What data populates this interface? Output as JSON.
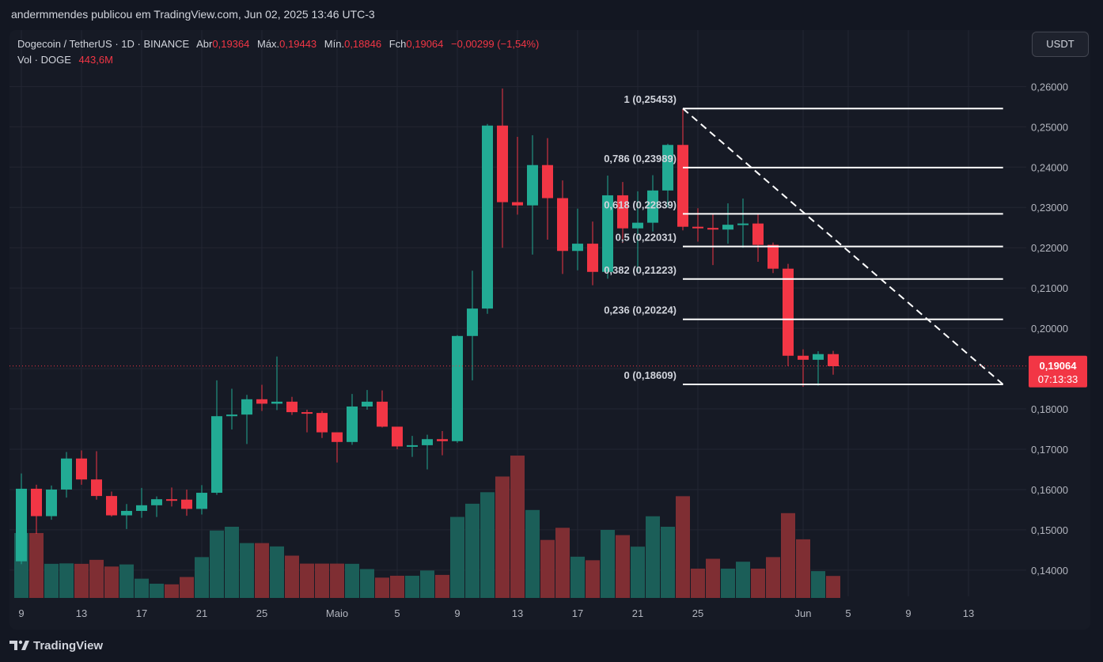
{
  "header": {
    "publisher_line": "andermmendes publicou em TradingView.com, Jun 02, 2025 13:46 UTC-3"
  },
  "legend": {
    "symbol": "Dogecoin / TetherUS · 1D · BINANCE",
    "open_label": "Abr",
    "open_value": "0,19364",
    "high_label": "Máx.",
    "high_value": "0,19443",
    "low_label": "Mín.",
    "low_value": "0,18846",
    "close_label": "Fch",
    "close_value": "0,19064",
    "change": "−0,00299 (−1,54%)",
    "vol_label": "Vol · DOGE",
    "vol_value": "443,6M"
  },
  "unit_button": "USDT",
  "price_badge": {
    "price": "0,19064",
    "countdown": "07:13:33"
  },
  "footer": {
    "brand": "TradingView"
  },
  "colors": {
    "background": "#161a25",
    "up": "#22ab94",
    "down": "#f23645",
    "vol_up": "#1b5e58",
    "vol_down": "#7f2e33",
    "text": "#d1d4dc",
    "axis_text": "#b2b5be",
    "fib_line": "#ffffff",
    "badge": "#f23645"
  },
  "chart_data": {
    "type": "candlestick",
    "title": "Dogecoin / TetherUS · 1D · BINANCE",
    "ylim": [
      0.1335,
      0.274
    ],
    "y_ticks": [
      "0,14000",
      "0,15000",
      "0,16000",
      "0,17000",
      "0,18000",
      "0,19000",
      "0,20000",
      "0,21000",
      "0,22000",
      "0,23000",
      "0,24000",
      "0,25000",
      "0,26000"
    ],
    "y_tick_values": [
      0.14,
      0.15,
      0.16,
      0.17,
      0.18,
      0.19,
      0.2,
      0.21,
      0.22,
      0.23,
      0.24,
      0.25,
      0.26
    ],
    "x_tick_labels": [
      {
        "label": "9",
        "day": 1
      },
      {
        "label": "13",
        "day": 5
      },
      {
        "label": "17",
        "day": 9
      },
      {
        "label": "21",
        "day": 13
      },
      {
        "label": "25",
        "day": 17
      },
      {
        "label": "Maio",
        "day": 22
      },
      {
        "label": "5",
        "day": 26
      },
      {
        "label": "9",
        "day": 30
      },
      {
        "label": "13",
        "day": 34
      },
      {
        "label": "17",
        "day": 38
      },
      {
        "label": "21",
        "day": 42
      },
      {
        "label": "25",
        "day": 46
      },
      {
        "label": "Jun",
        "day": 53
      },
      {
        "label": "5",
        "day": 56
      },
      {
        "label": "9",
        "day": 60
      },
      {
        "label": "13",
        "day": 64
      }
    ],
    "x_range_days": [
      0,
      66.3
    ],
    "candles": [
      {
        "day": 1,
        "o": 0.1422,
        "h": 0.164,
        "l": 0.1415,
        "c": 0.1602,
        "v": 0.31
      },
      {
        "day": 2,
        "o": 0.1602,
        "h": 0.1612,
        "l": 0.149,
        "c": 0.1534,
        "v": 0.31
      },
      {
        "day": 3,
        "o": 0.1534,
        "h": 0.161,
        "l": 0.1525,
        "c": 0.16,
        "v": 0.163
      },
      {
        "day": 4,
        "o": 0.16,
        "h": 0.1693,
        "l": 0.158,
        "c": 0.1677,
        "v": 0.165
      },
      {
        "day": 5,
        "o": 0.1677,
        "h": 0.1697,
        "l": 0.1612,
        "c": 0.1625,
        "v": 0.163
      },
      {
        "day": 6,
        "o": 0.1625,
        "h": 0.1695,
        "l": 0.1575,
        "c": 0.1584,
        "v": 0.182
      },
      {
        "day": 7,
        "o": 0.1584,
        "h": 0.1595,
        "l": 0.1533,
        "c": 0.1536,
        "v": 0.15
      },
      {
        "day": 8,
        "o": 0.1536,
        "h": 0.1564,
        "l": 0.1502,
        "c": 0.1547,
        "v": 0.16
      },
      {
        "day": 9,
        "o": 0.1547,
        "h": 0.1604,
        "l": 0.153,
        "c": 0.1561,
        "v": 0.092
      },
      {
        "day": 10,
        "o": 0.1561,
        "h": 0.1583,
        "l": 0.1532,
        "c": 0.1576,
        "v": 0.068
      },
      {
        "day": 11,
        "o": 0.1576,
        "h": 0.1605,
        "l": 0.1558,
        "c": 0.1575,
        "v": 0.065
      },
      {
        "day": 12,
        "o": 0.1575,
        "h": 0.16,
        "l": 0.1535,
        "c": 0.1552,
        "v": 0.1
      },
      {
        "day": 13,
        "o": 0.1552,
        "h": 0.1611,
        "l": 0.1538,
        "c": 0.1592,
        "v": 0.195
      },
      {
        "day": 14,
        "o": 0.1592,
        "h": 0.1871,
        "l": 0.1587,
        "c": 0.1782,
        "v": 0.322
      },
      {
        "day": 15,
        "o": 0.1782,
        "h": 0.185,
        "l": 0.1749,
        "c": 0.1786,
        "v": 0.34
      },
      {
        "day": 16,
        "o": 0.1786,
        "h": 0.1835,
        "l": 0.1713,
        "c": 0.1824,
        "v": 0.262
      },
      {
        "day": 17,
        "o": 0.1824,
        "h": 0.186,
        "l": 0.1795,
        "c": 0.1813,
        "v": 0.262
      },
      {
        "day": 18,
        "o": 0.1813,
        "h": 0.193,
        "l": 0.1797,
        "c": 0.1818,
        "v": 0.246
      },
      {
        "day": 19,
        "o": 0.1818,
        "h": 0.183,
        "l": 0.1785,
        "c": 0.1792,
        "v": 0.202
      },
      {
        "day": 20,
        "o": 0.1792,
        "h": 0.1798,
        "l": 0.1742,
        "c": 0.179,
        "v": 0.164
      },
      {
        "day": 21,
        "o": 0.179,
        "h": 0.1795,
        "l": 0.1728,
        "c": 0.1742,
        "v": 0.164
      },
      {
        "day": 22,
        "o": 0.1742,
        "h": 0.174,
        "l": 0.1667,
        "c": 0.1718,
        "v": 0.164
      },
      {
        "day": 23,
        "o": 0.1718,
        "h": 0.1837,
        "l": 0.1711,
        "c": 0.1806,
        "v": 0.163
      },
      {
        "day": 24,
        "o": 0.1806,
        "h": 0.1847,
        "l": 0.1798,
        "c": 0.1818,
        "v": 0.138
      },
      {
        "day": 25,
        "o": 0.1818,
        "h": 0.1846,
        "l": 0.1754,
        "c": 0.1756,
        "v": 0.097
      },
      {
        "day": 26,
        "o": 0.1756,
        "h": 0.1753,
        "l": 0.17,
        "c": 0.1707,
        "v": 0.106
      },
      {
        "day": 27,
        "o": 0.1707,
        "h": 0.1733,
        "l": 0.1681,
        "c": 0.171,
        "v": 0.106
      },
      {
        "day": 28,
        "o": 0.171,
        "h": 0.1736,
        "l": 0.165,
        "c": 0.1725,
        "v": 0.131
      },
      {
        "day": 29,
        "o": 0.1725,
        "h": 0.1745,
        "l": 0.1685,
        "c": 0.172,
        "v": 0.11
      },
      {
        "day": 30,
        "o": 0.172,
        "h": 0.1983,
        "l": 0.1716,
        "c": 0.1981,
        "v": 0.387
      },
      {
        "day": 31,
        "o": 0.1981,
        "h": 0.2143,
        "l": 0.1871,
        "c": 0.2049,
        "v": 0.45
      },
      {
        "day": 32,
        "o": 0.2049,
        "h": 0.2507,
        "l": 0.2036,
        "c": 0.2503,
        "v": 0.505
      },
      {
        "day": 33,
        "o": 0.2503,
        "h": 0.2595,
        "l": 0.22,
        "c": 0.2313,
        "v": 0.58
      },
      {
        "day": 34,
        "o": 0.2313,
        "h": 0.2475,
        "l": 0.2282,
        "c": 0.2305,
        "v": 0.68
      },
      {
        "day": 35,
        "o": 0.2305,
        "h": 0.2479,
        "l": 0.2183,
        "c": 0.2405,
        "v": 0.42
      },
      {
        "day": 36,
        "o": 0.2405,
        "h": 0.2472,
        "l": 0.222,
        "c": 0.2323,
        "v": 0.277
      },
      {
        "day": 37,
        "o": 0.2323,
        "h": 0.2367,
        "l": 0.2135,
        "c": 0.2192,
        "v": 0.335
      },
      {
        "day": 38,
        "o": 0.2192,
        "h": 0.2297,
        "l": 0.2144,
        "c": 0.221,
        "v": 0.197
      },
      {
        "day": 39,
        "o": 0.221,
        "h": 0.2265,
        "l": 0.2107,
        "c": 0.214,
        "v": 0.18
      },
      {
        "day": 40,
        "o": 0.214,
        "h": 0.2379,
        "l": 0.2123,
        "c": 0.233,
        "v": 0.325
      },
      {
        "day": 41,
        "o": 0.233,
        "h": 0.2363,
        "l": 0.2212,
        "c": 0.2248,
        "v": 0.3
      },
      {
        "day": 42,
        "o": 0.2248,
        "h": 0.234,
        "l": 0.214,
        "c": 0.2262,
        "v": 0.245
      },
      {
        "day": 43,
        "o": 0.2262,
        "h": 0.238,
        "l": 0.224,
        "c": 0.2342,
        "v": 0.39
      },
      {
        "day": 44,
        "o": 0.2342,
        "h": 0.2458,
        "l": 0.23,
        "c": 0.2455,
        "v": 0.34
      },
      {
        "day": 45,
        "o": 0.2455,
        "h": 0.2545,
        "l": 0.2243,
        "c": 0.2252,
        "v": 0.486
      },
      {
        "day": 46,
        "o": 0.2252,
        "h": 0.2298,
        "l": 0.2215,
        "c": 0.2249,
        "v": 0.14
      },
      {
        "day": 47,
        "o": 0.2249,
        "h": 0.2285,
        "l": 0.2157,
        "c": 0.2245,
        "v": 0.187
      },
      {
        "day": 48,
        "o": 0.2245,
        "h": 0.231,
        "l": 0.221,
        "c": 0.2257,
        "v": 0.14
      },
      {
        "day": 49,
        "o": 0.2257,
        "h": 0.2322,
        "l": 0.22,
        "c": 0.226,
        "v": 0.173
      },
      {
        "day": 50,
        "o": 0.226,
        "h": 0.2283,
        "l": 0.2165,
        "c": 0.2207,
        "v": 0.14
      },
      {
        "day": 51,
        "o": 0.2207,
        "h": 0.2213,
        "l": 0.2137,
        "c": 0.2148,
        "v": 0.195
      },
      {
        "day": 52,
        "o": 0.2148,
        "h": 0.216,
        "l": 0.1906,
        "c": 0.1932,
        "v": 0.405
      },
      {
        "day": 53,
        "o": 0.1932,
        "h": 0.1948,
        "l": 0.1855,
        "c": 0.1922,
        "v": 0.28
      },
      {
        "day": 54,
        "o": 0.1922,
        "h": 0.1943,
        "l": 0.1858,
        "c": 0.1936,
        "v": 0.128
      },
      {
        "day": 55,
        "o": 0.1936,
        "h": 0.1944,
        "l": 0.1885,
        "c": 0.1906,
        "v": 0.105
      }
    ],
    "fibonacci": {
      "start_day": 45,
      "end_day": 66.3,
      "levels": [
        {
          "label": "1 (0,25453)",
          "value": 0.25453
        },
        {
          "label": "0,786 (0,23989)",
          "value": 0.23989
        },
        {
          "label": "0,618 (0,22839)",
          "value": 0.22839
        },
        {
          "label": "0,5 (0,22031)",
          "value": 0.22031
        },
        {
          "label": "0,382 (0,21223)",
          "value": 0.21223
        },
        {
          "label": "0,236 (0,20224)",
          "value": 0.20224
        },
        {
          "label": "0 (0,18609)",
          "value": 0.18609
        }
      ],
      "trend_line": {
        "from_day": 45,
        "from_value": 0.25453,
        "to_day": 66.3,
        "to_value": 0.18609
      }
    },
    "current_price": 0.19064
  }
}
